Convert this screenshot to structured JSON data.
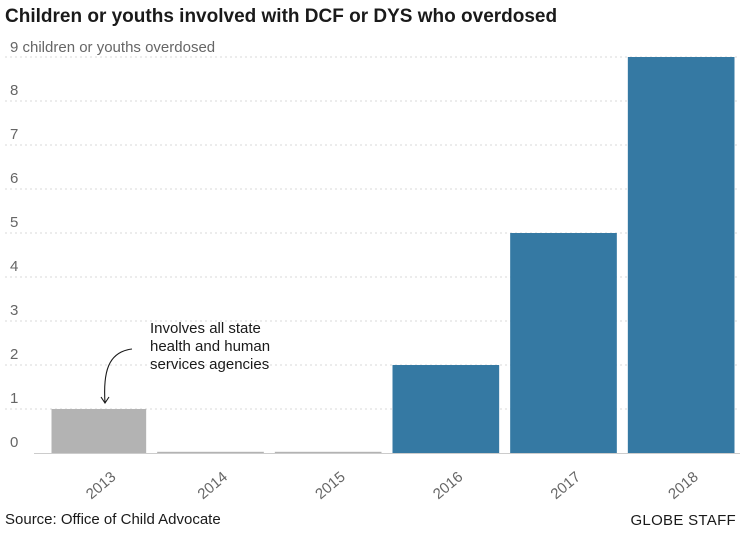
{
  "chart_data": {
    "type": "bar",
    "title": "Children or youths involved with DCF or DYS who overdosed",
    "unit_label": "9 children or youths overdosed",
    "categories": [
      "2013",
      "2014",
      "2015",
      "2016",
      "2017",
      "2018"
    ],
    "values": [
      1,
      0,
      0,
      2,
      5,
      9
    ],
    "ylim": [
      0,
      9
    ],
    "yticks": [
      "0",
      "1",
      "2",
      "3",
      "4",
      "5",
      "6",
      "7",
      "8"
    ],
    "grid": true,
    "colors": {
      "highlight": "#b3b3b3",
      "primary": "#3579a3"
    },
    "bar_colors": [
      "#b3b3b3",
      "#b3b3b3",
      "#b3b3b3",
      "#3579a3",
      "#3579a3",
      "#3579a3"
    ],
    "annotation": {
      "category": "2013",
      "lines": [
        "Involves all state",
        "health and human",
        "services agencies"
      ]
    }
  },
  "footer": {
    "source": "Source: Office of Child Advocate",
    "credit": "GLOBE STAFF"
  }
}
